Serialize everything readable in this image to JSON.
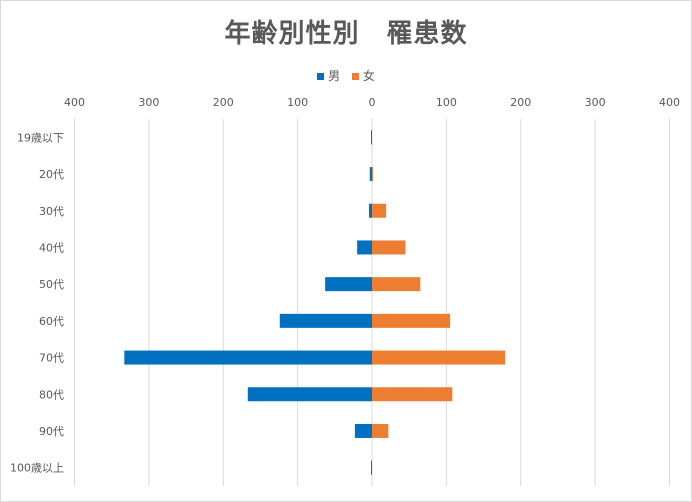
{
  "chart_data": {
    "type": "bar",
    "orientation": "horizontal",
    "title": "年齢別性別　罹患数",
    "categories": [
      "19歳以下",
      "20代",
      "30代",
      "40代",
      "50代",
      "60代",
      "70代",
      "80代",
      "90代",
      "100歳以上"
    ],
    "series": [
      {
        "name": "男",
        "color": "#0070C0",
        "values": [
          1,
          3,
          4,
          20,
          63,
          124,
          333,
          167,
          23,
          1
        ]
      },
      {
        "name": "女",
        "color": "#ED7D31",
        "values": [
          0,
          1,
          19,
          45,
          65,
          105,
          179,
          108,
          22,
          0
        ]
      }
    ],
    "xticks": [
      "400",
      "300",
      "200",
      "100",
      "0",
      "100",
      "200",
      "300",
      "400"
    ],
    "xlim": [
      -400,
      400
    ],
    "grid": true,
    "legend_position": "top"
  }
}
